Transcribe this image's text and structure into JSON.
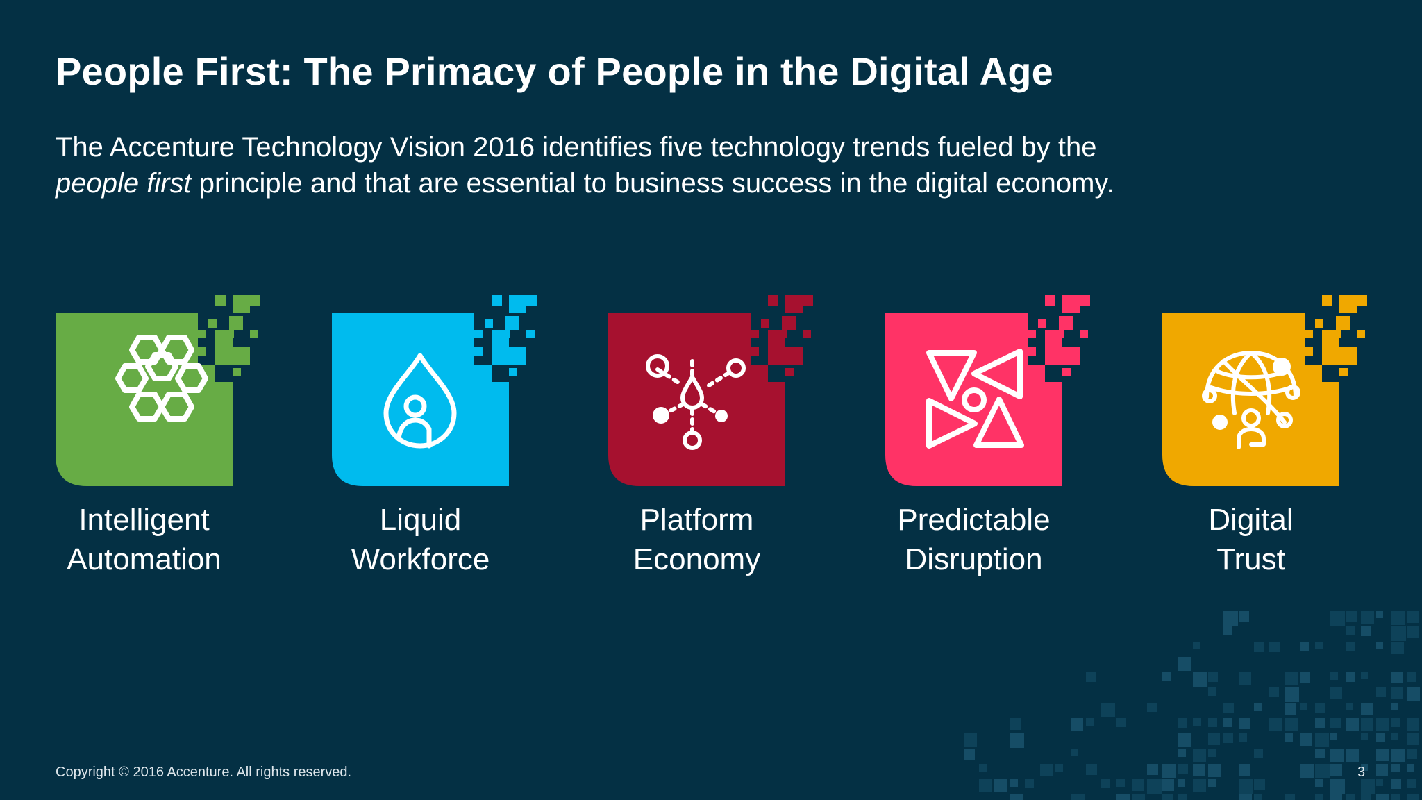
{
  "slide": {
    "title": "People First: The Primacy of People in the Digital Age",
    "subtitle_line1": "The Accenture Technology Vision 2016 identifies five technology trends fueled by the",
    "subtitle_emphasis": "people first",
    "subtitle_line2": " principle and that are essential to business success in the digital economy."
  },
  "trends": [
    {
      "line1": "Intelligent",
      "line2": "Automation",
      "color": "#67AC45",
      "icon": "honeycomb-icon"
    },
    {
      "line1": "Liquid",
      "line2": "Workforce",
      "color": "#00BBEE",
      "icon": "droplet-person-icon"
    },
    {
      "line1": "Platform",
      "line2": "Economy",
      "color": "#A6112F",
      "icon": "network-nodes-icon"
    },
    {
      "line1": "Predictable",
      "line2": "Disruption",
      "color": "#FF3366",
      "icon": "pinwheel-icon"
    },
    {
      "line1": "Digital",
      "line2": "Trust",
      "color": "#F0A800",
      "icon": "globe-person-icon"
    }
  ],
  "footer": {
    "copyright": "Copyright © 2016 Accenture. All rights reserved.",
    "page_number": "3"
  }
}
